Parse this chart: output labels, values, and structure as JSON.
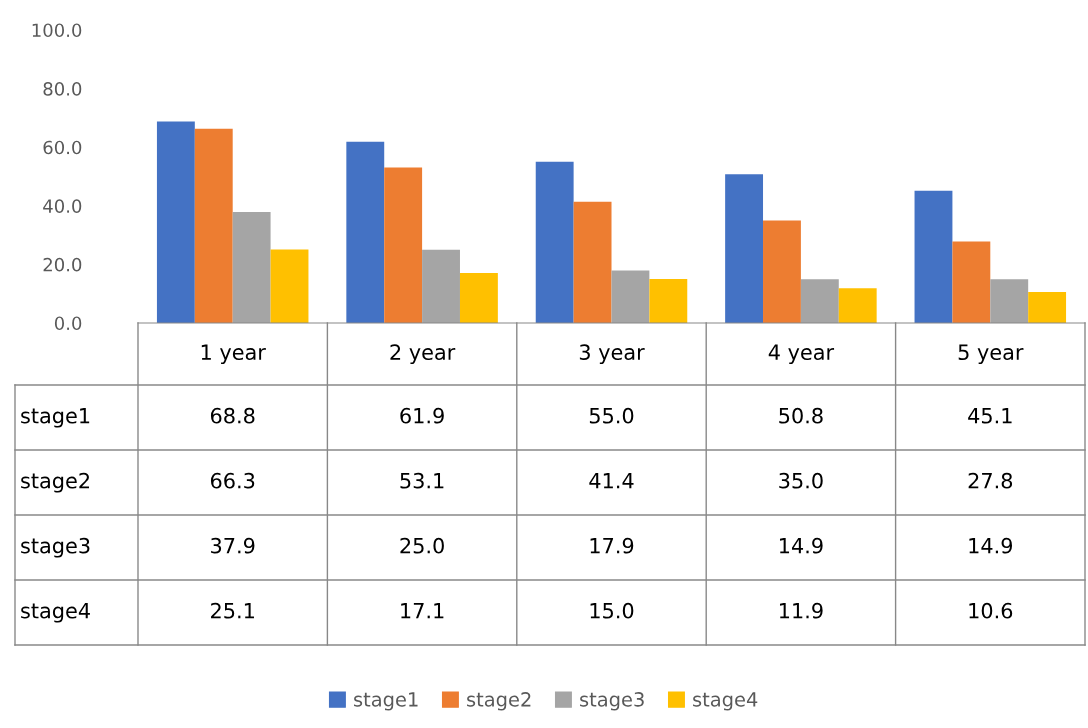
{
  "chart_data": {
    "type": "bar",
    "categories": [
      "1 year",
      "2 year",
      "3 year",
      "4 year",
      "5 year"
    ],
    "series": [
      {
        "name": "stage1",
        "color": "#4472c4",
        "values": [
          68.8,
          61.9,
          55.0,
          50.8,
          45.1
        ],
        "value_labels": [
          "68.8",
          "61.9",
          "55.0",
          "50.8",
          "45.1"
        ]
      },
      {
        "name": "stage2",
        "color": "#ed7d31",
        "values": [
          66.3,
          53.1,
          41.4,
          35.0,
          27.8
        ],
        "value_labels": [
          "66.3",
          "53.1",
          "41.4",
          "35.0",
          "27.8"
        ]
      },
      {
        "name": "stage3",
        "color": "#a5a5a5",
        "values": [
          37.9,
          25.0,
          17.9,
          14.9,
          14.9
        ],
        "value_labels": [
          "37.9",
          "25.0",
          "17.9",
          "14.9",
          "14.9"
        ]
      },
      {
        "name": "stage4",
        "color": "#ffc000",
        "values": [
          25.1,
          17.1,
          15.0,
          11.9,
          10.6
        ],
        "value_labels": [
          "25.1",
          "17.1",
          "15.0",
          "11.9",
          "10.6"
        ]
      }
    ],
    "ylim": [
      0,
      100
    ],
    "yticks": [
      {
        "value": 0,
        "label": "0.0"
      },
      {
        "value": 20,
        "label": "20.0"
      },
      {
        "value": 40,
        "label": "40.0"
      },
      {
        "value": 60,
        "label": "60.0"
      },
      {
        "value": 80,
        "label": "80.0"
      },
      {
        "value": 100,
        "label": "100.0"
      }
    ],
    "grid": false,
    "legend": "bottom"
  }
}
